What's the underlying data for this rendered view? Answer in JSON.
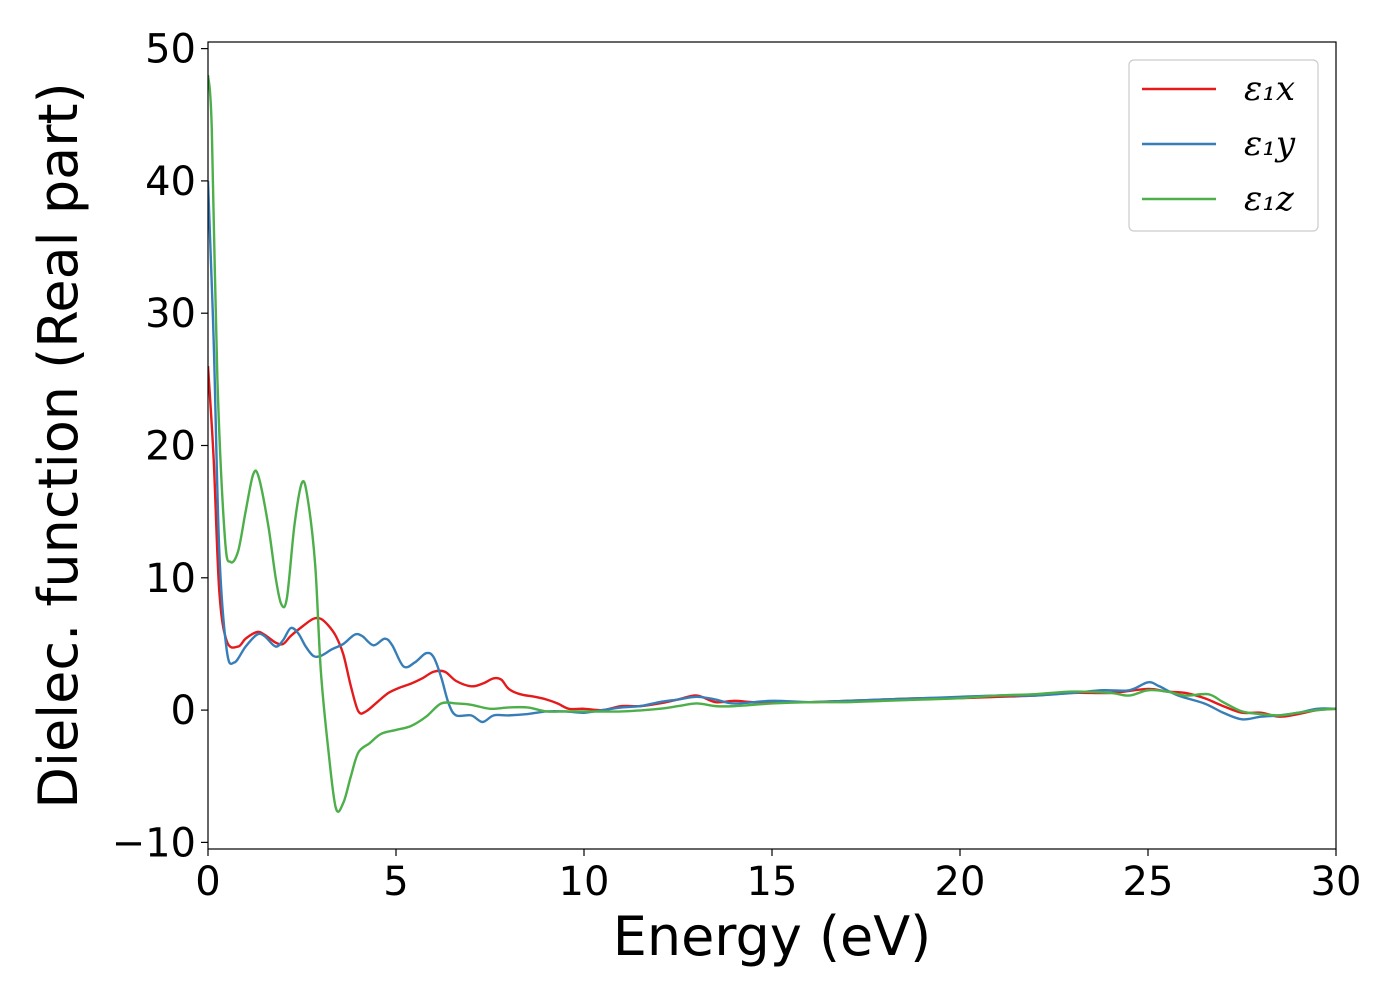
{
  "chart_data": {
    "type": "line",
    "title": "",
    "xlabel": "Energy (eV)",
    "ylabel": "Dielec. function (Real part)",
    "xlim": [
      0,
      30
    ],
    "ylim": [
      -10.5,
      50.5
    ],
    "xticks": [
      0,
      5,
      10,
      15,
      20,
      25,
      30
    ],
    "xtick_labels": [
      "0",
      "5",
      "10",
      "15",
      "20",
      "25",
      "30"
    ],
    "yticks": [
      -10,
      0,
      10,
      20,
      30,
      40,
      50
    ],
    "ytick_labels": [
      "−10",
      "0",
      "10",
      "20",
      "30",
      "40",
      "50"
    ],
    "grid": false,
    "legend_position": "top-right",
    "series": [
      {
        "name": "ε₁x",
        "color": "#e41a1c",
        "points": [
          [
            0,
            26
          ],
          [
            0.15,
            19
          ],
          [
            0.3,
            9
          ],
          [
            0.5,
            5.2
          ],
          [
            0.8,
            4.8
          ],
          [
            1.0,
            5.4
          ],
          [
            1.3,
            5.9
          ],
          [
            1.5,
            5.7
          ],
          [
            1.8,
            5.1
          ],
          [
            2.0,
            5.0
          ],
          [
            2.2,
            5.6
          ],
          [
            2.5,
            6.3
          ],
          [
            2.8,
            6.9
          ],
          [
            3.0,
            6.9
          ],
          [
            3.2,
            6.4
          ],
          [
            3.4,
            5.6
          ],
          [
            3.6,
            4.2
          ],
          [
            3.8,
            1.8
          ],
          [
            4.0,
            -0.1
          ],
          [
            4.2,
            -0.1
          ],
          [
            4.5,
            0.6
          ],
          [
            4.8,
            1.3
          ],
          [
            5.1,
            1.7
          ],
          [
            5.4,
            2.0
          ],
          [
            5.7,
            2.4
          ],
          [
            6.0,
            2.9
          ],
          [
            6.3,
            2.9
          ],
          [
            6.6,
            2.2
          ],
          [
            7.0,
            1.8
          ],
          [
            7.3,
            2.0
          ],
          [
            7.6,
            2.4
          ],
          [
            7.8,
            2.3
          ],
          [
            8.0,
            1.6
          ],
          [
            8.3,
            1.2
          ],
          [
            8.7,
            1.0
          ],
          [
            9.0,
            0.8
          ],
          [
            9.3,
            0.5
          ],
          [
            9.6,
            0.1
          ],
          [
            10,
            0.1
          ],
          [
            10.5,
            0.0
          ],
          [
            11,
            0.3
          ],
          [
            11.5,
            0.3
          ],
          [
            12,
            0.5
          ],
          [
            12.5,
            0.8
          ],
          [
            13,
            1.1
          ],
          [
            13.5,
            0.6
          ],
          [
            14,
            0.7
          ],
          [
            14.5,
            0.6
          ],
          [
            15,
            0.6
          ],
          [
            16,
            0.6
          ],
          [
            17,
            0.7
          ],
          [
            18,
            0.8
          ],
          [
            19,
            0.9
          ],
          [
            20,
            0.9
          ],
          [
            21,
            1.0
          ],
          [
            22,
            1.1
          ],
          [
            23,
            1.3
          ],
          [
            24,
            1.3
          ],
          [
            25,
            1.6
          ],
          [
            25.5,
            1.4
          ],
          [
            26,
            1.3
          ],
          [
            26.5,
            0.9
          ],
          [
            27,
            0.3
          ],
          [
            27.5,
            -0.2
          ],
          [
            28,
            -0.2
          ],
          [
            28.5,
            -0.5
          ],
          [
            29,
            -0.3
          ],
          [
            29.5,
            0
          ],
          [
            30,
            0.1
          ]
        ]
      },
      {
        "name": "ε₁y",
        "color": "#377eb8",
        "points": [
          [
            0,
            40
          ],
          [
            0.15,
            28
          ],
          [
            0.3,
            12
          ],
          [
            0.5,
            4.5
          ],
          [
            0.7,
            3.6
          ],
          [
            1.0,
            4.8
          ],
          [
            1.3,
            5.7
          ],
          [
            1.5,
            5.6
          ],
          [
            1.8,
            4.8
          ],
          [
            2.0,
            5.3
          ],
          [
            2.2,
            6.2
          ],
          [
            2.4,
            5.8
          ],
          [
            2.6,
            4.8
          ],
          [
            2.8,
            4.1
          ],
          [
            3.0,
            4.1
          ],
          [
            3.3,
            4.6
          ],
          [
            3.6,
            5.0
          ],
          [
            3.9,
            5.7
          ],
          [
            4.1,
            5.6
          ],
          [
            4.4,
            4.9
          ],
          [
            4.7,
            5.4
          ],
          [
            4.9,
            4.9
          ],
          [
            5.2,
            3.3
          ],
          [
            5.5,
            3.6
          ],
          [
            5.8,
            4.3
          ],
          [
            6.0,
            4.0
          ],
          [
            6.2,
            2.5
          ],
          [
            6.4,
            0.5
          ],
          [
            6.6,
            -0.4
          ],
          [
            7.0,
            -0.4
          ],
          [
            7.3,
            -0.9
          ],
          [
            7.6,
            -0.4
          ],
          [
            8.0,
            -0.4
          ],
          [
            8.5,
            -0.3
          ],
          [
            9.0,
            -0.1
          ],
          [
            9.5,
            -0.1
          ],
          [
            10,
            -0.2
          ],
          [
            10.5,
            0
          ],
          [
            11,
            0.2
          ],
          [
            11.5,
            0.3
          ],
          [
            12,
            0.6
          ],
          [
            12.5,
            0.8
          ],
          [
            13,
            1.0
          ],
          [
            13.5,
            0.8
          ],
          [
            14,
            0.5
          ],
          [
            15,
            0.7
          ],
          [
            16,
            0.6
          ],
          [
            17,
            0.7
          ],
          [
            18,
            0.8
          ],
          [
            19,
            0.9
          ],
          [
            20,
            1.0
          ],
          [
            21,
            1.1
          ],
          [
            22,
            1.1
          ],
          [
            23,
            1.3
          ],
          [
            23.8,
            1.5
          ],
          [
            24.5,
            1.5
          ],
          [
            25,
            2.1
          ],
          [
            25.3,
            1.8
          ],
          [
            25.8,
            1.1
          ],
          [
            26.5,
            0.5
          ],
          [
            27,
            -0.2
          ],
          [
            27.5,
            -0.7
          ],
          [
            28,
            -0.5
          ],
          [
            28.5,
            -0.4
          ],
          [
            29,
            -0.2
          ],
          [
            29.5,
            0.1
          ],
          [
            30,
            0.1
          ]
        ]
      },
      {
        "name": "ε₁z",
        "color": "#4daf4a",
        "points": [
          [
            0,
            48
          ],
          [
            0.1,
            44
          ],
          [
            0.25,
            25
          ],
          [
            0.45,
            13
          ],
          [
            0.6,
            11.2
          ],
          [
            0.8,
            12
          ],
          [
            1.0,
            15
          ],
          [
            1.2,
            17.8
          ],
          [
            1.35,
            17.6
          ],
          [
            1.6,
            14
          ],
          [
            1.8,
            10
          ],
          [
            1.95,
            8
          ],
          [
            2.1,
            8.5
          ],
          [
            2.3,
            14
          ],
          [
            2.5,
            17.2
          ],
          [
            2.65,
            16
          ],
          [
            2.85,
            11
          ],
          [
            3.0,
            3
          ],
          [
            3.2,
            -3
          ],
          [
            3.4,
            -7.4
          ],
          [
            3.6,
            -7
          ],
          [
            3.8,
            -5
          ],
          [
            4.0,
            -3.2
          ],
          [
            4.3,
            -2.5
          ],
          [
            4.6,
            -1.8
          ],
          [
            5.0,
            -1.5
          ],
          [
            5.4,
            -1.2
          ],
          [
            5.8,
            -0.5
          ],
          [
            6.2,
            0.5
          ],
          [
            6.6,
            0.5
          ],
          [
            7.0,
            0.4
          ],
          [
            7.5,
            0.1
          ],
          [
            8.0,
            0.2
          ],
          [
            8.5,
            0.2
          ],
          [
            9.0,
            -0.1
          ],
          [
            9.5,
            -0.1
          ],
          [
            10,
            -0.1
          ],
          [
            11,
            -0.1
          ],
          [
            12,
            0.1
          ],
          [
            12.5,
            0.3
          ],
          [
            13,
            0.5
          ],
          [
            13.5,
            0.3
          ],
          [
            14,
            0.3
          ],
          [
            15,
            0.5
          ],
          [
            16,
            0.6
          ],
          [
            17,
            0.6
          ],
          [
            18,
            0.7
          ],
          [
            19,
            0.8
          ],
          [
            20,
            0.9
          ],
          [
            21,
            1.1
          ],
          [
            22,
            1.2
          ],
          [
            23,
            1.4
          ],
          [
            24,
            1.3
          ],
          [
            24.5,
            1.1
          ],
          [
            25,
            1.5
          ],
          [
            25.5,
            1.4
          ],
          [
            26,
            1.1
          ],
          [
            26.6,
            1.2
          ],
          [
            27,
            0.6
          ],
          [
            27.5,
            -0.1
          ],
          [
            28,
            -0.3
          ],
          [
            28.5,
            -0.4
          ],
          [
            29,
            -0.2
          ],
          [
            29.5,
            0
          ],
          [
            30,
            0.1
          ]
        ]
      }
    ]
  }
}
